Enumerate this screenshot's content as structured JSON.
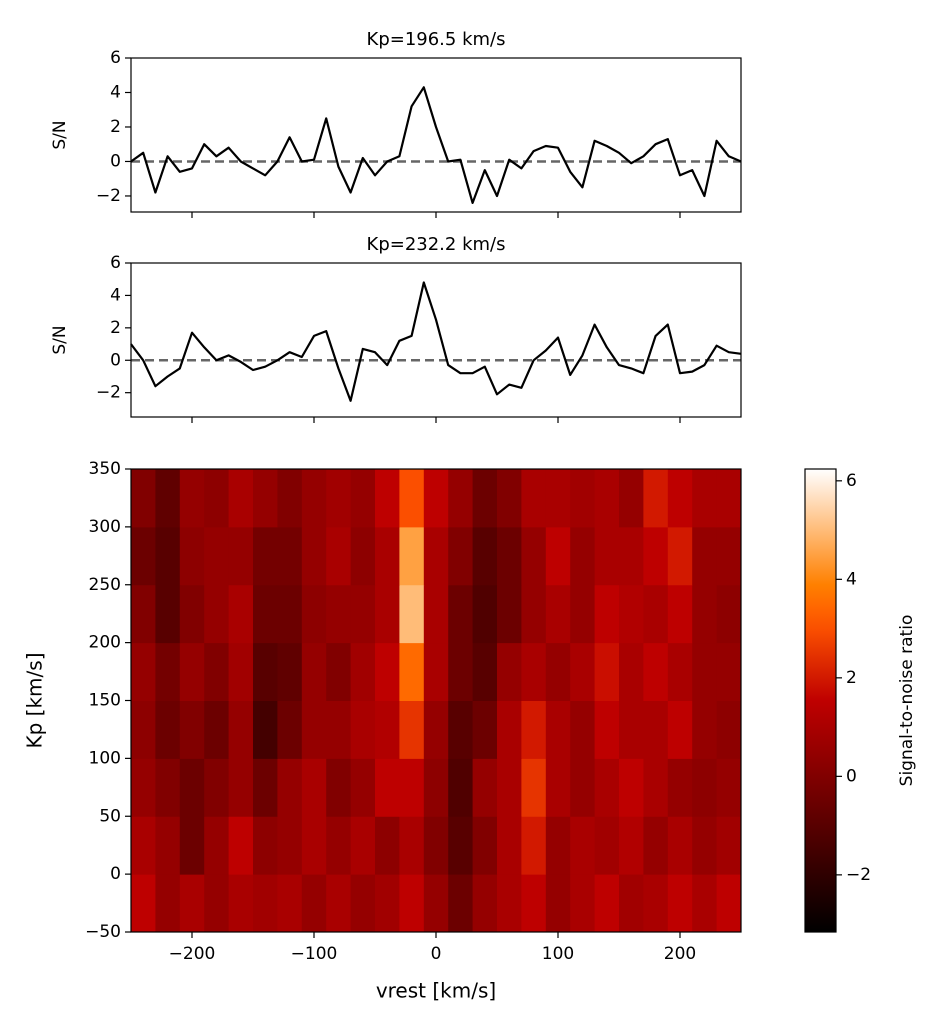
{
  "chart_data": [
    {
      "type": "line",
      "title": "Kp=196.5 km/s",
      "ylabel": "S/N",
      "x": [
        -250,
        -240,
        -230,
        -220,
        -210,
        -200,
        -190,
        -180,
        -170,
        -160,
        -150,
        -140,
        -130,
        -120,
        -110,
        -100,
        -90,
        -80,
        -70,
        -60,
        -50,
        -40,
        -30,
        -20,
        -10,
        0,
        10,
        20,
        30,
        40,
        50,
        60,
        70,
        80,
        90,
        100,
        110,
        120,
        130,
        140,
        150,
        160,
        170,
        180,
        190,
        200,
        210,
        220,
        230,
        240,
        250
      ],
      "values": [
        0.0,
        0.5,
        -1.8,
        0.3,
        -0.6,
        -0.4,
        1.0,
        0.3,
        0.8,
        0.0,
        -0.4,
        -0.8,
        0.0,
        1.4,
        0.0,
        0.1,
        2.5,
        -0.3,
        -1.8,
        0.2,
        -0.8,
        0.0,
        0.3,
        3.2,
        4.3,
        2.0,
        0.0,
        0.1,
        -2.4,
        -0.5,
        -2.0,
        0.1,
        -0.4,
        0.6,
        0.9,
        0.8,
        -0.6,
        -1.5,
        1.2,
        0.9,
        0.5,
        -0.1,
        0.3,
        1.0,
        1.3,
        -0.8,
        -0.5,
        -2.0,
        1.2,
        0.3,
        0.0
      ],
      "color": "#000000",
      "hline": 0,
      "hline_color": "#666666",
      "xlim": [
        -250,
        250
      ],
      "ylim": [
        -2.93,
        6
      ],
      "yticks": [
        {
          "value": -2,
          "label": "−2"
        },
        0,
        2,
        4,
        6
      ]
    },
    {
      "type": "line",
      "title": "Kp=232.2 km/s",
      "ylabel": "S/N",
      "x": [
        -250,
        -240,
        -230,
        -220,
        -210,
        -200,
        -190,
        -180,
        -170,
        -160,
        -150,
        -140,
        -130,
        -120,
        -110,
        -100,
        -90,
        -80,
        -70,
        -60,
        -50,
        -40,
        -30,
        -20,
        -10,
        0,
        10,
        20,
        30,
        40,
        50,
        60,
        70,
        80,
        90,
        100,
        110,
        120,
        130,
        140,
        150,
        160,
        170,
        180,
        190,
        200,
        210,
        220,
        230,
        240,
        250
      ],
      "values": [
        1.0,
        0.0,
        -1.6,
        -1.0,
        -0.5,
        1.7,
        0.8,
        0.0,
        0.3,
        -0.1,
        -0.6,
        -0.4,
        0.0,
        0.5,
        0.2,
        1.5,
        1.8,
        -0.5,
        -2.5,
        0.7,
        0.5,
        -0.3,
        1.2,
        1.5,
        4.8,
        2.5,
        -0.3,
        -0.8,
        -0.8,
        -0.4,
        -2.1,
        -1.5,
        -1.7,
        0.0,
        0.6,
        1.4,
        -0.9,
        0.3,
        2.2,
        0.8,
        -0.3,
        -0.5,
        -0.8,
        1.5,
        2.2,
        -0.8,
        -0.7,
        -0.3,
        0.9,
        0.5,
        0.4
      ],
      "color": "#000000",
      "hline": 0,
      "hline_color": "#666666",
      "xlim": [
        -250,
        250
      ],
      "ylim": [
        -3.5,
        6
      ],
      "yticks": [
        {
          "value": -2,
          "label": "−2"
        },
        0,
        2,
        4,
        6
      ]
    },
    {
      "type": "heatmap",
      "xlabel": "vrest [km/s]",
      "ylabel": "Kp [km/s]",
      "x": [
        -240,
        -220,
        -200,
        -180,
        -160,
        -140,
        -120,
        -100,
        -80,
        -60,
        -40,
        -20,
        0,
        20,
        40,
        60,
        80,
        100,
        120,
        140,
        160,
        180,
        200,
        220,
        240
      ],
      "y": [
        -25,
        25,
        75,
        125,
        175,
        225,
        275,
        325
      ],
      "z": [
        [
          1.5,
          0.5,
          1,
          0.5,
          1,
          0.8,
          1,
          0.5,
          1,
          0.5,
          0.8,
          1.5,
          0.5,
          -0.5,
          0.5,
          1,
          1.5,
          0.5,
          1,
          1.5,
          0.8,
          1,
          1.5,
          1,
          1.5
        ],
        [
          1,
          0.5,
          -0.5,
          0.5,
          1.5,
          0.3,
          0.5,
          1,
          0.5,
          1,
          0.3,
          1,
          0,
          -1,
          0,
          1,
          2,
          0.5,
          1,
          0.8,
          1.2,
          0.5,
          1,
          0.5,
          0.8
        ],
        [
          0.5,
          0,
          -0.5,
          0,
          0.5,
          -0.5,
          0.5,
          1,
          0,
          0.5,
          1.5,
          1.5,
          0.3,
          -1.2,
          0.5,
          1,
          2.5,
          1,
          0.5,
          1,
          1.5,
          1,
          0.5,
          0.3,
          0.5
        ],
        [
          0.3,
          -0.5,
          0,
          -0.5,
          0.5,
          -1.5,
          -0.5,
          0.5,
          0.5,
          1,
          1.2,
          2.5,
          0.5,
          -1,
          -0.5,
          1,
          2,
          1,
          0.5,
          1.5,
          1,
          1,
          1.5,
          0.5,
          0.3
        ],
        [
          0.5,
          -0.3,
          0.5,
          0,
          0.8,
          -1,
          -0.8,
          0.5,
          0,
          0.8,
          1.5,
          3.5,
          1,
          -0.5,
          -1,
          0.5,
          1,
          0.5,
          1,
          1.8,
          1,
          1.5,
          1,
          0.5,
          0.5
        ],
        [
          0,
          -1,
          0,
          0.5,
          1,
          -0.5,
          -0.5,
          0.3,
          0.5,
          0.5,
          1,
          5,
          1,
          -0.5,
          -1.2,
          -0.5,
          0.5,
          1,
          0.5,
          1.5,
          1.2,
          1,
          1.5,
          0.5,
          0.3
        ],
        [
          -0.5,
          -1,
          0.3,
          0.5,
          0.5,
          -0.3,
          -0.3,
          0.5,
          1,
          0.3,
          1,
          4.5,
          1,
          0,
          -1,
          -0.5,
          0.5,
          1.5,
          0.5,
          1,
          1,
          1.5,
          2,
          0.5,
          0.5
        ],
        [
          0,
          -0.8,
          0.5,
          0.3,
          1,
          0.5,
          0,
          0.5,
          0.8,
          0.5,
          1.5,
          3,
          1.5,
          0.5,
          -0.5,
          0,
          1,
          1,
          0.8,
          1,
          0.5,
          2,
          1.5,
          1,
          1
        ]
      ],
      "xlim": [
        -250,
        250
      ],
      "ylim": [
        -50,
        350
      ],
      "xticks": [
        {
          "value": -200,
          "label": "−200"
        },
        {
          "value": -100,
          "label": "−100"
        },
        0,
        100,
        200
      ],
      "yticks": [
        {
          "value": -50,
          "label": "−50"
        },
        0,
        50,
        100,
        150,
        200,
        250,
        300,
        350
      ],
      "colormap": "gist_heat",
      "clim": [
        -3.16,
        6.24
      ],
      "cticks": [
        {
          "value": -2,
          "label": "−2"
        },
        0,
        2,
        4,
        6
      ],
      "colorbar_label": "Signal-to-noise ratio"
    }
  ]
}
